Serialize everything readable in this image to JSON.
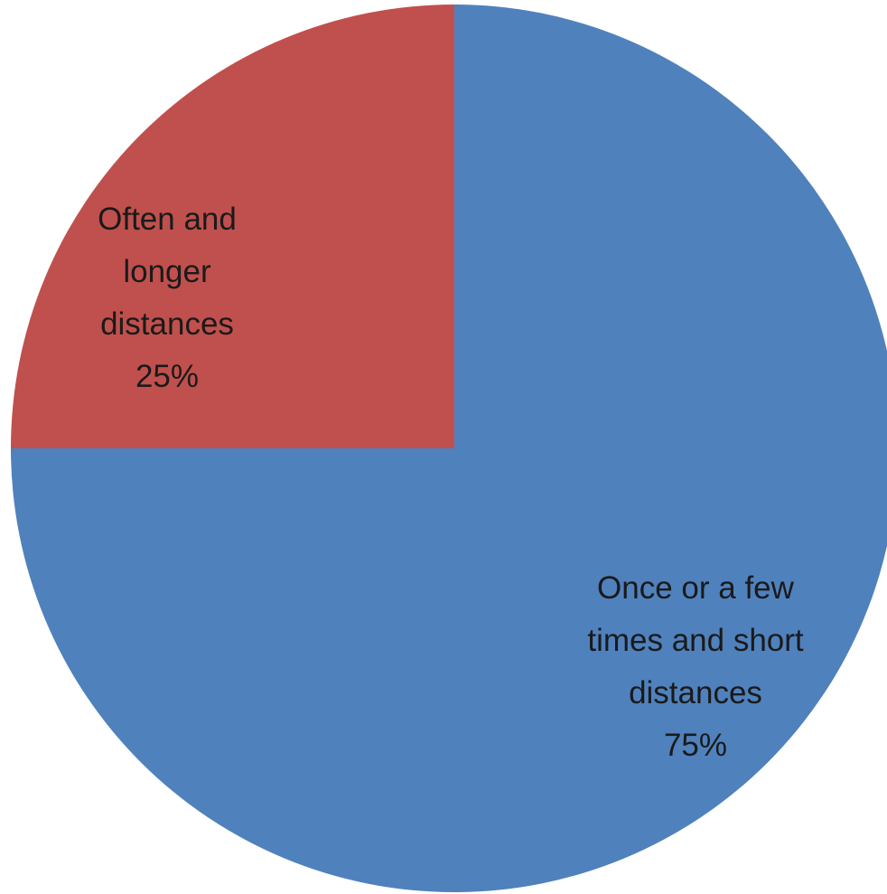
{
  "chart_data": {
    "type": "pie",
    "title": "",
    "slices": [
      {
        "label_lines": [
          "Once or a few",
          "times and short",
          "distances"
        ],
        "percent_label": "75%",
        "value": 75,
        "color": "#4f81bd"
      },
      {
        "label_lines": [
          "Often and",
          "longer",
          "distances"
        ],
        "percent_label": "25%",
        "value": 25,
        "color": "#c0504d"
      }
    ],
    "start_angle_deg": 0,
    "direction": "clockwise",
    "legend": "none"
  }
}
